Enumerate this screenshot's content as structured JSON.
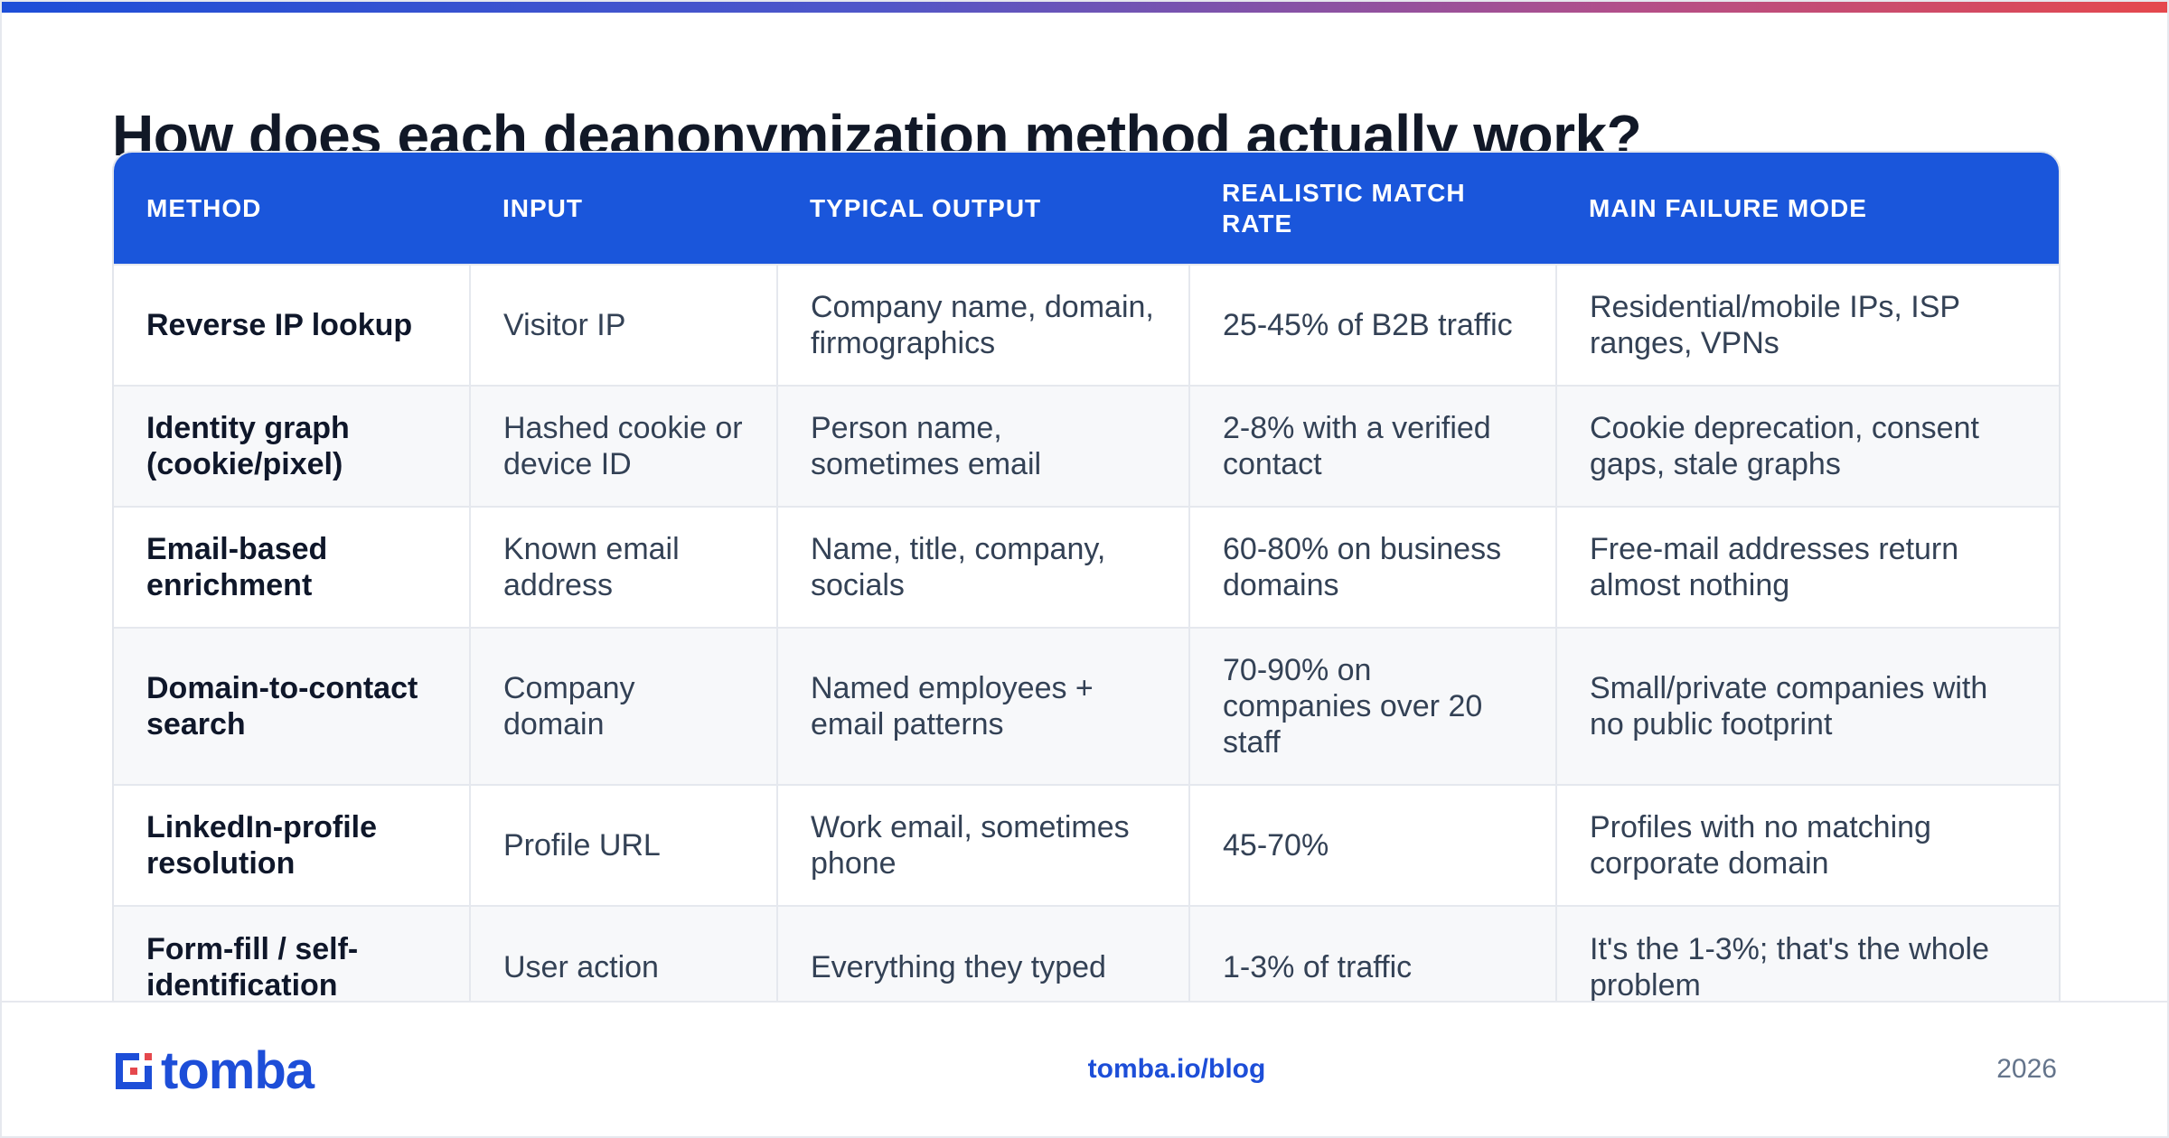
{
  "headline": "How does each deanonymization method actually work?",
  "table": {
    "headers": [
      "METHOD",
      "INPUT",
      "TYPICAL OUTPUT",
      "REALISTIC MATCH RATE",
      "MAIN FAILURE MODE"
    ],
    "rows": [
      [
        "Reverse IP lookup",
        "Visitor IP",
        "Company name, domain, firmographics",
        "25-45% of B2B traffic",
        "Residential/mobile IPs, ISP ranges, VPNs"
      ],
      [
        "Identity graph (cookie/pixel)",
        "Hashed cookie or device ID",
        "Person name, sometimes email",
        "2-8% with a verified contact",
        "Cookie deprecation, consent gaps, stale graphs"
      ],
      [
        "Email-based enrichment",
        "Known email address",
        "Name, title, company, socials",
        "60-80% on business domains",
        "Free-mail addresses return almost nothing"
      ],
      [
        "Domain-to-contact search",
        "Company domain",
        "Named employees + email patterns",
        "70-90% on companies over 20 staff",
        "Small/private companies with no public footprint"
      ],
      [
        "LinkedIn-profile resolution",
        "Profile URL",
        "Work email, sometimes phone",
        "45-70%",
        "Profiles with no matching corporate domain"
      ],
      [
        "Form-fill / self-identification",
        "User action",
        "Everything they typed",
        "1-3% of traffic",
        "It's the 1-3%; that's the whole problem"
      ]
    ]
  },
  "footer": {
    "logo_text": "tomba",
    "link": "tomba.io/blog",
    "year": "2026"
  },
  "colors": {
    "accent": "#1a56db",
    "gradient_start": "#1d4ed8",
    "gradient_end": "#e5484d"
  },
  "icons": {
    "logo": "tomba-logo-icon"
  }
}
